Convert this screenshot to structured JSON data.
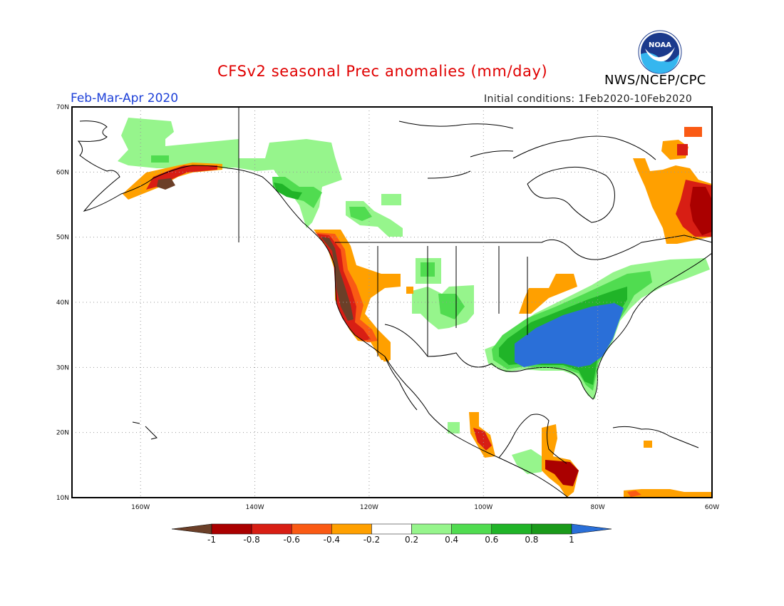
{
  "header": {
    "title": "CFSv2 seasonal Prec anomalies (mm/day)",
    "agency": "NWS/NCEP/CPC",
    "logo_text": "NOAA",
    "season": "Feb-Mar-Apr 2020",
    "initial_conditions": "Initial conditions: 1Feb2020-10Feb2020"
  },
  "map": {
    "lon_range": [
      -172,
      -60
    ],
    "lat_range": [
      10,
      70
    ],
    "lat_ticks": [
      "10N",
      "20N",
      "30N",
      "40N",
      "50N",
      "60N",
      "70N"
    ],
    "lon_ticks": [
      "160W",
      "140W",
      "120W",
      "100W",
      "80W",
      "60W"
    ],
    "gridlines": "dotted"
  },
  "colorbar": {
    "labels": [
      "-1",
      "-0.8",
      "-0.6",
      "-0.4",
      "-0.2",
      "0.2",
      "0.4",
      "0.6",
      "0.8",
      "1"
    ],
    "colors": [
      "#6b3f28",
      "#aa0000",
      "#d81e14",
      "#fa5a14",
      "#ffa000",
      "#ffffff",
      "#96f58c",
      "#50dc50",
      "#20b428",
      "#1a9a1a",
      "#2a6fd8"
    ]
  }
}
